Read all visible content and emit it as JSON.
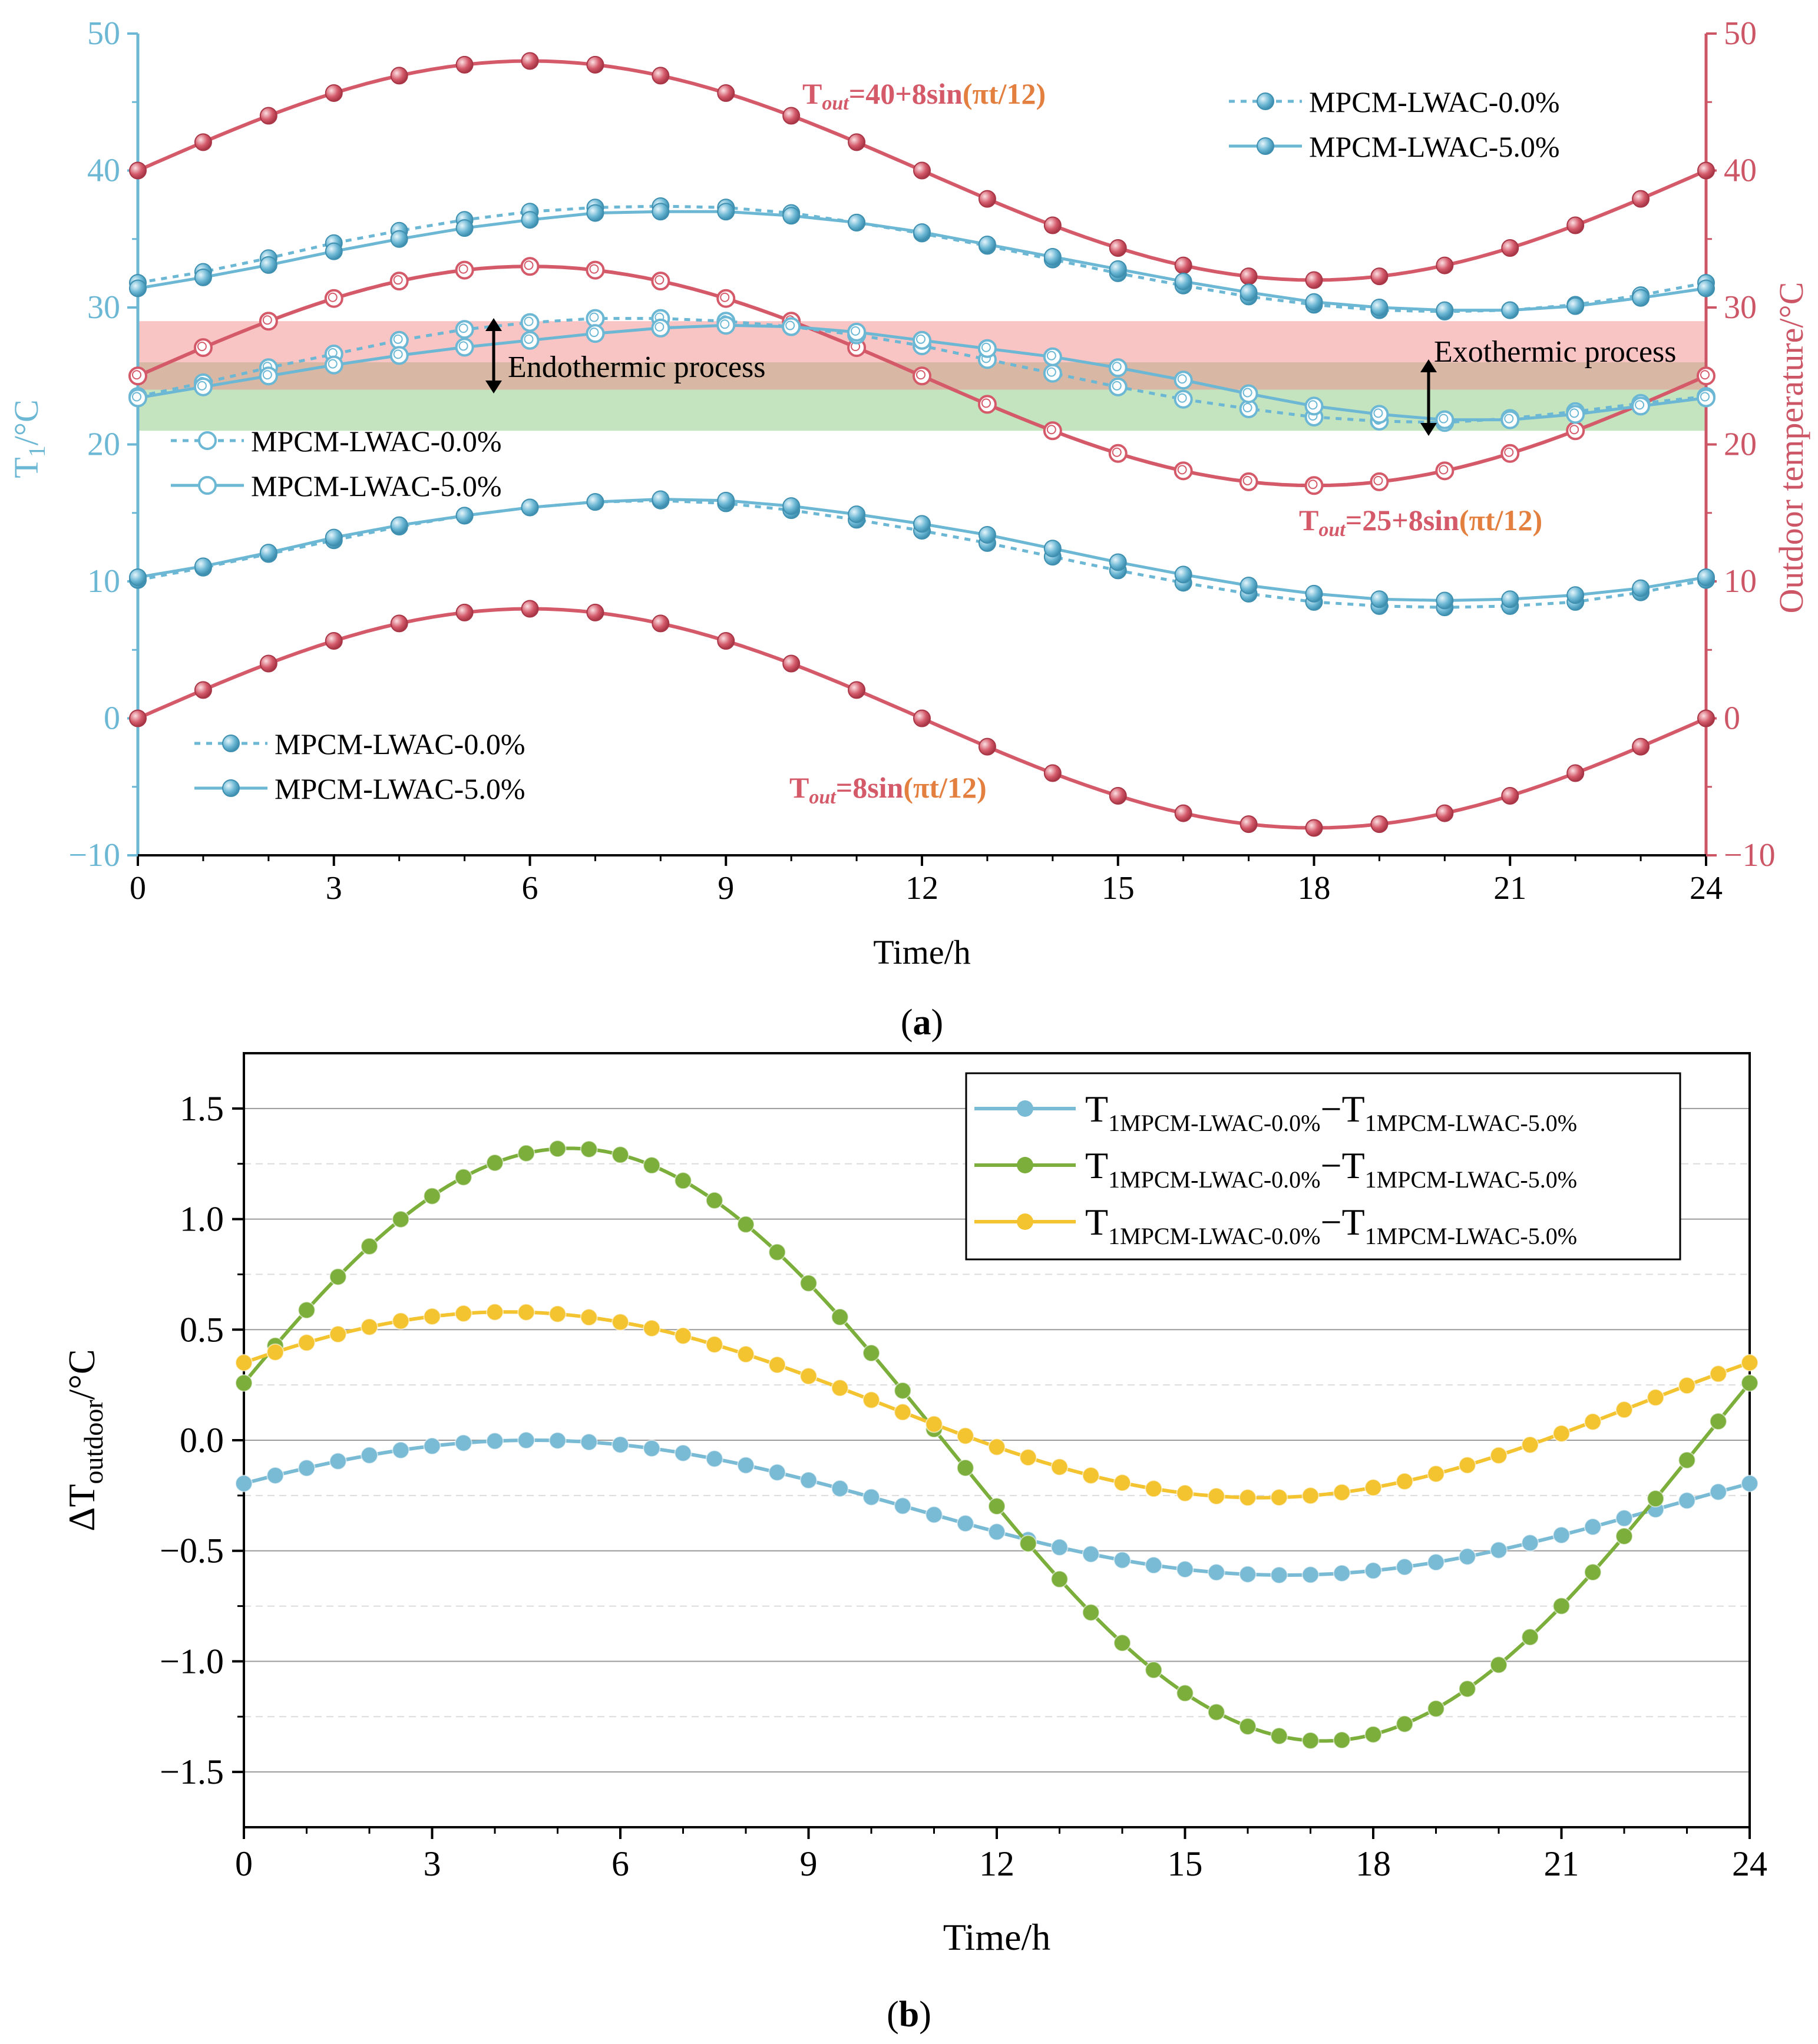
{
  "chart_data": [
    {
      "type": "line",
      "panel_label": "(a)",
      "panel_label_letter": "a",
      "xlabel": "Time/h",
      "ylabel_left": "T",
      "ylabel_left_sub": "1",
      "ylabel_left_unit": "/°C",
      "ylabel_right": "Outdoor temperature/°C",
      "xlim": [
        0,
        24
      ],
      "ylim_left": [
        -10,
        50
      ],
      "ylim_right": [
        -10,
        50
      ],
      "x_ticks": [
        "0",
        "3",
        "6",
        "9",
        "12",
        "15",
        "18",
        "21",
        "24"
      ],
      "y_ticks_left": [
        "−10",
        "0",
        "10",
        "20",
        "30",
        "40",
        "50"
      ],
      "y_ticks_right": [
        "−10",
        "0",
        "10",
        "20",
        "30",
        "40",
        "50"
      ],
      "colors": {
        "axis_left": "#6BB7D4",
        "axis_right": "#CC5566",
        "outdoor": "#D45A6A",
        "indoor": "#6BB7D4",
        "band_red": "#F8C4C4",
        "band_green": "#C4E4C0",
        "band_overlap": "#D8B8A4"
      },
      "bands": [
        {
          "name": "upper-band",
          "y_range": [
            26,
            29
          ]
        },
        {
          "name": "overlap-band",
          "y_range": [
            24,
            26
          ]
        },
        {
          "name": "lower-band",
          "y_range": [
            21,
            24
          ]
        }
      ],
      "outdoor_series": [
        {
          "name": "T_out=40+8sin(πt/12)",
          "label_prefix": "T",
          "label_sub": "out",
          "label_mid": "=40+8sin",
          "label_paren": "(πt/12)",
          "offset": 40,
          "amplitude": 8
        },
        {
          "name": "T_out=25+8sin(πt/12)",
          "label_prefix": "T",
          "label_sub": "out",
          "label_mid": "=25+8sin",
          "label_paren": "(πt/12)",
          "offset": 25,
          "amplitude": 8
        },
        {
          "name": "T_out=8sin(πt/12)",
          "label_prefix": "T",
          "label_sub": "out",
          "label_mid": "=8sin",
          "label_paren": "(πt/12)",
          "offset": 0,
          "amplitude": 8
        }
      ],
      "indoor_groups": [
        {
          "group": "high",
          "legend_marker": "filled",
          "series": [
            {
              "name": "MPCM-LWAC-0.0%",
              "style": "dotted",
              "values": [
                31.8,
                32.6,
                33.6,
                34.7,
                35.6,
                36.4,
                37.0,
                37.3,
                37.4,
                37.3,
                36.9,
                36.2,
                35.4,
                34.5,
                33.5,
                32.5,
                31.6,
                30.8,
                30.2,
                29.8,
                29.7,
                29.8,
                30.2,
                30.9,
                31.8
              ]
            },
            {
              "name": "MPCM-LWAC-5.0%",
              "style": "solid",
              "values": [
                31.4,
                32.2,
                33.1,
                34.1,
                35.0,
                35.8,
                36.4,
                36.9,
                37.0,
                37.0,
                36.7,
                36.2,
                35.5,
                34.6,
                33.7,
                32.8,
                31.9,
                31.1,
                30.4,
                30.0,
                29.8,
                29.8,
                30.1,
                30.7,
                31.4
              ]
            }
          ]
        },
        {
          "group": "middle",
          "legend_marker": "hollow",
          "series": [
            {
              "name": "MPCM-LWAC-0.0%",
              "style": "dotted",
              "values": [
                23.5,
                24.5,
                25.6,
                26.6,
                27.6,
                28.4,
                28.9,
                29.2,
                29.2,
                29.0,
                28.6,
                28.0,
                27.2,
                26.2,
                25.2,
                24.2,
                23.3,
                22.6,
                22.0,
                21.7,
                21.6,
                21.9,
                22.4,
                23.0,
                23.5
              ]
            },
            {
              "name": "MPCM-LWAC-5.0%",
              "style": "solid",
              "values": [
                23.4,
                24.2,
                25.0,
                25.8,
                26.5,
                27.1,
                27.6,
                28.1,
                28.5,
                28.7,
                28.6,
                28.2,
                27.6,
                27.0,
                26.4,
                25.6,
                24.7,
                23.7,
                22.8,
                22.2,
                21.8,
                21.8,
                22.2,
                22.8,
                23.4
              ]
            }
          ]
        },
        {
          "group": "low",
          "legend_marker": "filled",
          "series": [
            {
              "name": "MPCM-LWAC-0.0%",
              "style": "dotted",
              "values": [
                10.1,
                11.0,
                12.0,
                13.0,
                14.0,
                14.8,
                15.4,
                15.8,
                15.9,
                15.7,
                15.2,
                14.5,
                13.7,
                12.8,
                11.8,
                10.8,
                9.9,
                9.1,
                8.5,
                8.2,
                8.1,
                8.2,
                8.5,
                9.2,
                10.1
              ]
            },
            {
              "name": "MPCM-LWAC-5.0%",
              "style": "solid",
              "values": [
                10.3,
                11.1,
                12.1,
                13.2,
                14.1,
                14.8,
                15.4,
                15.8,
                16.0,
                15.9,
                15.5,
                14.9,
                14.2,
                13.4,
                12.4,
                11.4,
                10.5,
                9.7,
                9.1,
                8.7,
                8.6,
                8.7,
                9.0,
                9.5,
                10.3
              ]
            }
          ]
        }
      ],
      "legend_label_0": "MPCM-LWAC-0.0%",
      "legend_label_5": "MPCM-LWAC-5.0%",
      "annotations": {
        "endothermic": "Endothermic process",
        "exothermic": "Exothermic process"
      }
    },
    {
      "type": "line",
      "panel_label": "(b)",
      "panel_label_letter": "b",
      "xlabel": "Time/h",
      "ylabel": "ΔT",
      "ylabel_sub": "outdoor",
      "ylabel_unit": "/°C",
      "xlim": [
        0,
        24
      ],
      "ylim": [
        -1.75,
        1.75
      ],
      "x_ticks": [
        "0",
        "3",
        "6",
        "9",
        "12",
        "15",
        "18",
        "21",
        "24"
      ],
      "y_ticks": [
        "−1.5",
        "−1.0",
        "−0.5",
        "0.0",
        "0.5",
        "1.0",
        "1.5"
      ],
      "y_tick_values": [
        -1.5,
        -1.0,
        -0.5,
        0.0,
        0.5,
        1.0,
        1.5
      ],
      "minor_grid_values": [
        -1.25,
        -0.75,
        -0.25,
        0.25,
        0.75,
        1.25
      ],
      "series": [
        {
          "name": "T1MPCM-LWAC-0.0%−T1MPCM-LWAC-5.0%",
          "legend_a": "T",
          "legend_a_sub": "1MPCM-LWAC-0.0%",
          "legend_minus": "−",
          "legend_b": "T",
          "legend_b_sub": "1MPCM-LWAC-5.0%",
          "color": "#79BAD4",
          "offset": -0.305,
          "amplitude": 0.305,
          "peak_h": 4.6
        },
        {
          "name": "T1MPCM-LWAC-0.0%−T1MPCM-LWAC-5.0%",
          "legend_a": "T",
          "legend_a_sub": "1MPCM-LWAC-0.0%",
          "legend_minus": "−",
          "legend_b": "T",
          "legend_b_sub": "1MPCM-LWAC-5.0%",
          "color": "#7BAE3A",
          "offset": -0.02,
          "amplitude": 1.34,
          "peak_h": 5.2
        },
        {
          "name": "T1MPCM-LWAC-0.0%−T1MPCM-LWAC-5.0%",
          "legend_a": "T",
          "legend_a_sub": "1MPCM-LWAC-0.0%",
          "legend_minus": "−",
          "legend_b": "T",
          "legend_b_sub": "1MPCM-LWAC-5.0%",
          "color": "#F4C430",
          "offset": 0.16,
          "amplitude": 0.42,
          "peak_h": 4.2
        }
      ]
    }
  ]
}
